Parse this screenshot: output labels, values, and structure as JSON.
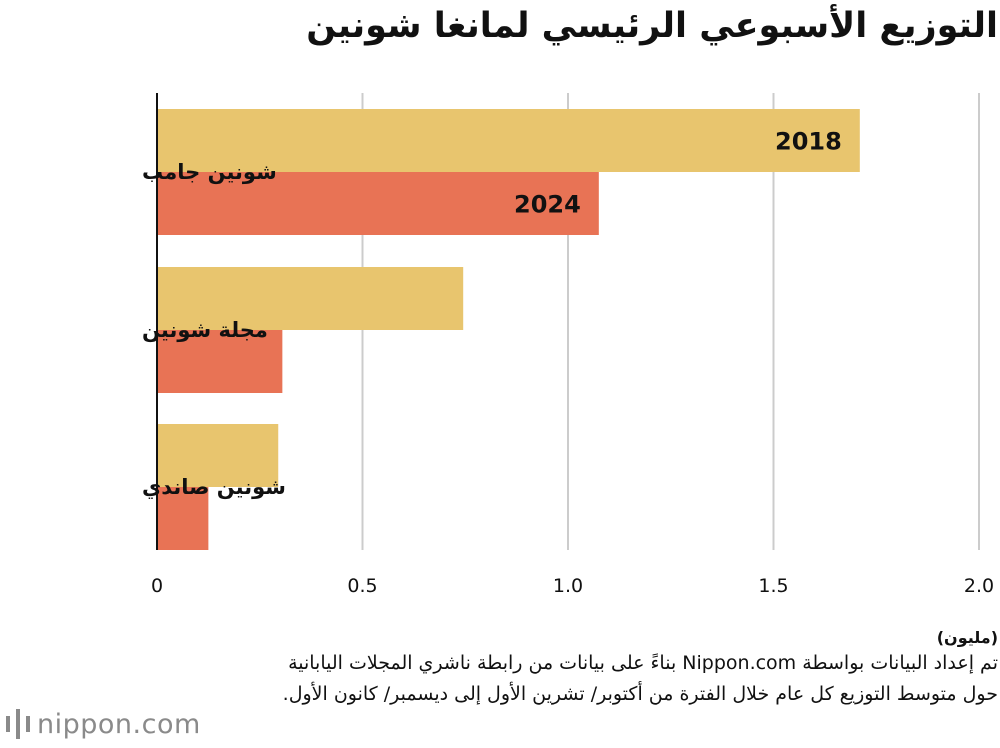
{
  "chart_data": {
    "type": "bar",
    "orientation": "horizontal",
    "title": "التوزيع الأسبوعي الرئيسي لمانغا شونين",
    "categories": [
      "شونين جامب",
      "مجلة شونين",
      "شونين صاندي"
    ],
    "series": [
      {
        "name": "2018",
        "color": "#e8c56e",
        "values": [
          1.71,
          0.745,
          0.295
        ]
      },
      {
        "name": "2024",
        "color": "#e87355",
        "values": [
          1.075,
          0.305,
          0.125
        ]
      }
    ],
    "xlim": [
      0,
      2.0
    ],
    "xticks": [
      0,
      0.5,
      1.0,
      1.5,
      2.0
    ],
    "xtick_labels": [
      "0",
      "0.5",
      "1.0",
      "1.5",
      "2.0"
    ],
    "xlabel": "(مليون)",
    "grid": true,
    "legend": "inline labels on first category bars"
  },
  "note": "تم إعداد البيانات بواسطة Nippon.com بناءً على بيانات من رابطة ناشري المجلات اليابانية حول متوسط التوزيع كل عام خلال الفترة من أكتوبر/ تشرين الأول إلى ديسمبر/ كانون الأول.",
  "logo": {
    "text": "nippon.com",
    "color": "#8a8a8a",
    "icon": "nippon-logo-icon"
  }
}
